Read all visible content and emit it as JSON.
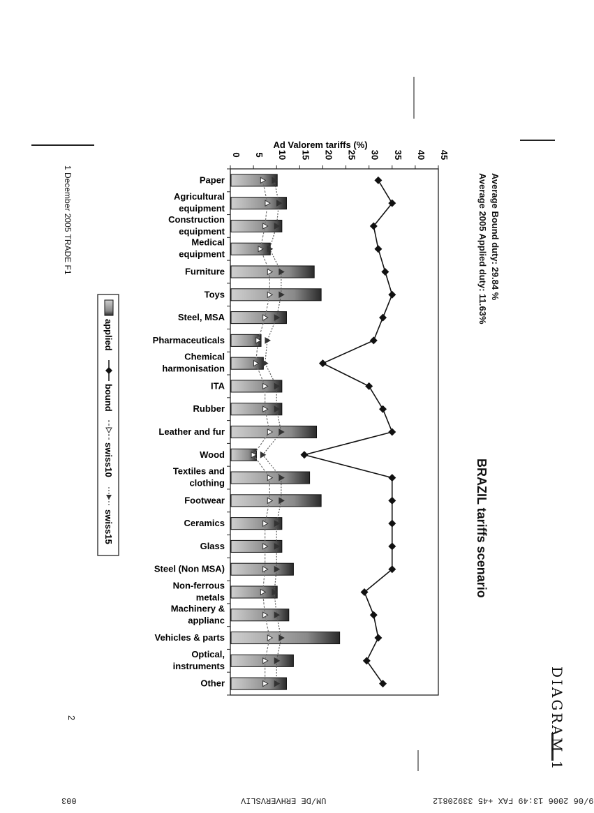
{
  "fax_header": {
    "left": "29/06 2006 13:49 FAX +45 33920812",
    "center": "UM/DE ERHVERVSLIV",
    "right": "003"
  },
  "handwriting": "DIAGRAM 1",
  "page_number": "2",
  "footer": "1 December 2005 TRADE F1",
  "stats": {
    "bound": "Average Bound duty:   29.84 %",
    "applied": "Average 2005 Applied duty: 11.63%"
  },
  "chart_data": {
    "type": "bar",
    "title": "BRAZIL tariffs scenario",
    "ylabel": "Ad Valorem tariffs (%)",
    "ylim": [
      0,
      45
    ],
    "yticks": [
      "0",
      "5",
      "10",
      "15",
      "20",
      "25",
      "30",
      "35",
      "40",
      "45"
    ],
    "categories": [
      "Paper",
      "Agricultural equipment",
      "Construction equipment",
      "Medical equipment",
      "Furniture",
      "Toys",
      "Steel, MSA",
      "Pharmaceuticals",
      "Chemical harmonisation",
      "ITA",
      "Rubber",
      "Leather and fur",
      "Wood",
      "Textiles and clothing",
      "Footwear",
      "Ceramics",
      "Glass",
      "Steel (Non MSA)",
      "Non-ferrous metals",
      "Machinery & applianc",
      "Vehicles & parts",
      "Optical, instruments",
      "Other"
    ],
    "category_lines": [
      [
        "Paper"
      ],
      [
        "Agricultural",
        "equipment"
      ],
      [
        "Construction",
        "equipment"
      ],
      [
        "Medical",
        "equipment"
      ],
      [
        "Furniture"
      ],
      [
        "Toys"
      ],
      [
        "Steel, MSA"
      ],
      [
        "Pharmaceuticals"
      ],
      [
        "Chemical",
        "harmonisation"
      ],
      [
        "ITA"
      ],
      [
        "Rubber"
      ],
      [
        "Leather and fur"
      ],
      [
        "Wood"
      ],
      [
        "Textiles and",
        "clothing"
      ],
      [
        "Footwear"
      ],
      [
        "Ceramics"
      ],
      [
        "Glass"
      ],
      [
        "Steel (Non MSA)"
      ],
      [
        "Non-ferrous",
        "metals"
      ],
      [
        "Machinery &",
        "applianc"
      ],
      [
        "Vehicles & parts"
      ],
      [
        "Optical,",
        "instruments"
      ],
      [
        "Other"
      ]
    ],
    "series": [
      {
        "name": "applied",
        "values": [
          10,
          12,
          11,
          8.5,
          18,
          19.5,
          12,
          6.5,
          7,
          11,
          11,
          18.5,
          5.5,
          17,
          19.5,
          11,
          11,
          13.5,
          10,
          12.5,
          23.5,
          13.5,
          12
        ]
      },
      {
        "name": "bound",
        "values": [
          32,
          35,
          31,
          32,
          33.5,
          35,
          33,
          31,
          20,
          30,
          33,
          35,
          16,
          35,
          35,
          35,
          35,
          35,
          29,
          31,
          32,
          29.5,
          33
        ]
      },
      {
        "name": "swiss10",
        "values": [
          7,
          8,
          7.5,
          6.5,
          8.5,
          8.5,
          7.5,
          6,
          5.5,
          7.5,
          7.5,
          8.5,
          5,
          8.5,
          8.5,
          7.5,
          7.5,
          7.5,
          7,
          7.5,
          8.5,
          7.5,
          7.5
        ]
      },
      {
        "name": "swiss15",
        "values": [
          9.5,
          10.5,
          10,
          8.5,
          11,
          11,
          10,
          8,
          7.5,
          10,
          10,
          11,
          7,
          11,
          11,
          10,
          10,
          10,
          9.5,
          10,
          11,
          10,
          10
        ]
      }
    ],
    "legend": "left",
    "grid": false
  }
}
